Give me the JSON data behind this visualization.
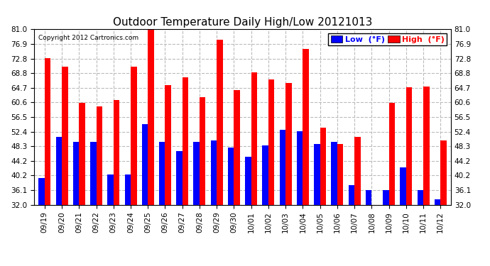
{
  "title": "Outdoor Temperature Daily High/Low 20121013",
  "copyright": "Copyright 2012 Cartronics.com",
  "legend_low": "Low  (°F)",
  "legend_high": "High  (°F)",
  "dates": [
    "09/19",
    "09/20",
    "09/21",
    "09/22",
    "09/23",
    "09/24",
    "09/25",
    "09/26",
    "09/27",
    "09/28",
    "09/29",
    "09/30",
    "10/01",
    "10/02",
    "10/03",
    "10/04",
    "10/05",
    "10/06",
    "10/07",
    "10/08",
    "10/09",
    "10/10",
    "10/11",
    "10/12"
  ],
  "highs": [
    73.0,
    70.5,
    60.5,
    59.5,
    61.2,
    70.5,
    81.0,
    65.5,
    67.5,
    62.0,
    78.0,
    64.0,
    69.0,
    67.0,
    66.0,
    75.5,
    53.5,
    49.0,
    51.0,
    32.0,
    60.5,
    64.8,
    65.0,
    50.0
  ],
  "lows": [
    39.5,
    51.0,
    49.5,
    49.5,
    40.5,
    40.5,
    54.5,
    49.5,
    47.0,
    49.5,
    50.0,
    48.0,
    45.5,
    48.5,
    53.0,
    52.5,
    49.0,
    49.5,
    37.5,
    36.2,
    36.2,
    42.5,
    36.2,
    33.5
  ],
  "ylim_min": 32.0,
  "ylim_max": 81.0,
  "yticks": [
    32.0,
    36.1,
    40.2,
    44.2,
    48.3,
    52.4,
    56.5,
    60.6,
    64.7,
    68.8,
    72.8,
    76.9,
    81.0
  ],
  "bar_width": 0.35,
  "high_color": "#ff0000",
  "low_color": "#0000ff",
  "bg_color": "#ffffff",
  "grid_color": "#bbbbbb",
  "title_fontsize": 11,
  "tick_fontsize": 7.5,
  "legend_fontsize": 8
}
